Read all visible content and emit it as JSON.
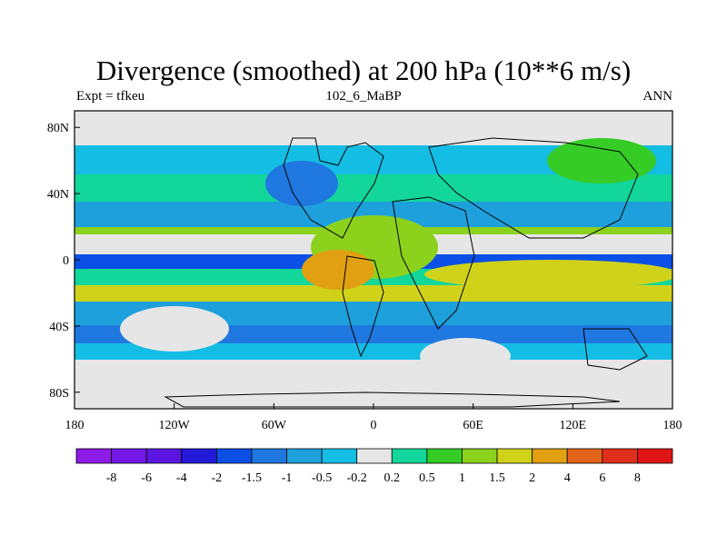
{
  "header": {
    "title": "Divergence (smoothed) at 200 hPa (10**6 m/s)",
    "left_label": "Expt = tfkeu",
    "center_label": "102_6_MaBP",
    "right_label": "ANN"
  },
  "map": {
    "lon_ticks": [
      "180",
      "120W",
      "60W",
      "0",
      "60E",
      "120E",
      "180"
    ],
    "lat_ticks": [
      "80N",
      "40N",
      "0",
      "40S",
      "80S"
    ],
    "lon_range": [
      -180,
      180
    ],
    "lat_range": [
      -90,
      90
    ],
    "missing_color": "#e6e6e6"
  },
  "colorbar": {
    "labels": [
      "-8",
      "-6",
      "-4",
      "-2",
      "-1.5",
      "-1",
      "-0.5",
      "-0.2",
      "0.2",
      "0.5",
      "1",
      "1.5",
      "2",
      "4",
      "6",
      "8"
    ],
    "colors": [
      "#8c1be6",
      "#7318e6",
      "#5a16e0",
      "#2319d6",
      "#0b4fe6",
      "#1f78e0",
      "#1ea0dc",
      "#14bde3",
      "#e6e6e6",
      "#12d69a",
      "#36cc26",
      "#8cd21c",
      "#d0d21a",
      "#e0a012",
      "#e2641a",
      "#e0301c",
      "#e01414"
    ]
  }
}
